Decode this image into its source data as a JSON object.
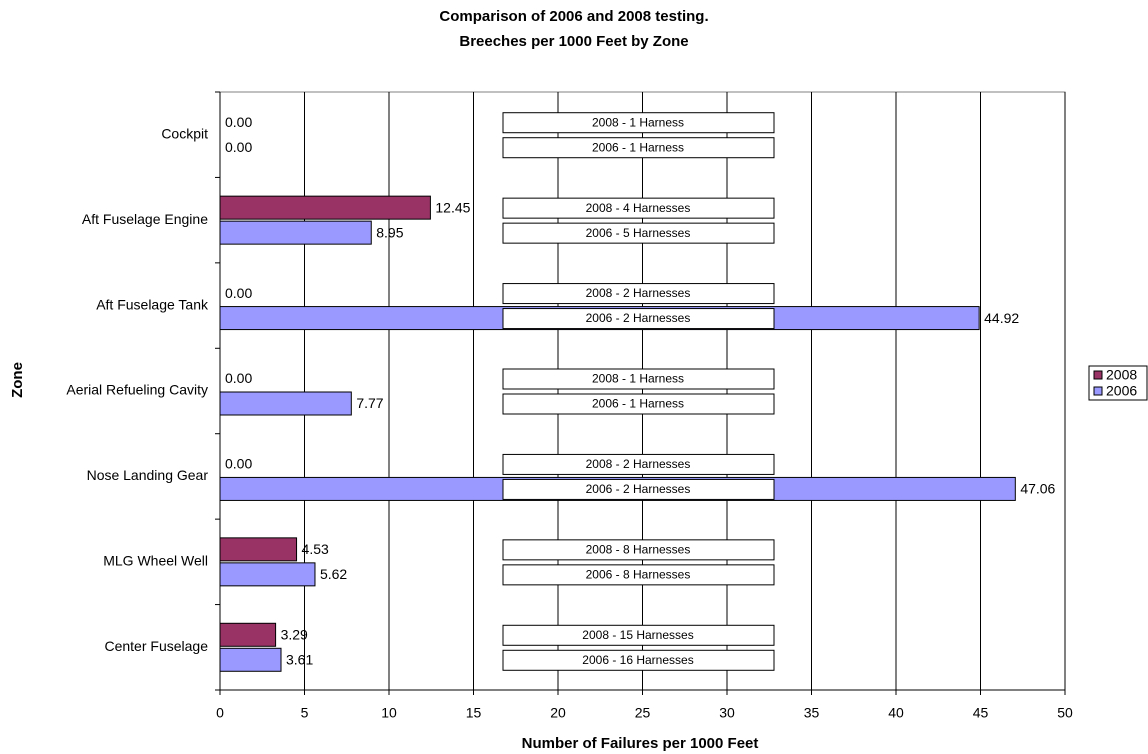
{
  "chart_data": {
    "type": "hbar",
    "title": "Comparison of 2006 and 2008 testing.",
    "subtitle": "Breeches per 1000 Feet by Zone",
    "x_label": "Number of Failures per 1000 Feet",
    "y_label": "Zone",
    "categories": [
      "Cockpit",
      "Aft Fuselage Engine",
      "Aft Fuselage Tank",
      "Aerial Refueling Cavity",
      "Nose Landing Gear",
      "MLG Wheel Well",
      "Center Fuselage"
    ],
    "series": [
      {
        "name": "2008",
        "color": "#993366",
        "values": [
          0,
          12.45,
          0,
          0,
          0,
          4.53,
          3.29
        ],
        "value_labels": [
          "0.00",
          "12.45",
          "0.00",
          "0.00",
          "0.00",
          "4.53",
          "3.29"
        ],
        "notes": [
          "2008 - 1 Harness",
          "2008 - 4 Harnesses",
          "2008 - 2 Harnesses",
          "2008 - 1 Harness",
          "2008 - 2 Harnesses",
          "2008 - 8 Harnesses",
          "2008 - 15 Harnesses"
        ]
      },
      {
        "name": "2006",
        "color": "#9999ff",
        "values": [
          0,
          8.95,
          44.92,
          7.77,
          47.06,
          5.62,
          3.61
        ],
        "value_labels": [
          "0.00",
          "8.95",
          "44.92",
          "7.77",
          "47.06",
          "5.62",
          "3.61"
        ],
        "notes": [
          "2006 - 1 Harness",
          "2006 - 5 Harnesses",
          "2006 - 2 Harnesses",
          "2006 - 1 Harness",
          "2006 - 2 Harnesses",
          "2006 - 8 Harnesses",
          "2006 - 16 Harnesses"
        ]
      }
    ],
    "xlim": [
      0,
      50
    ],
    "xticks": [
      0,
      5,
      10,
      15,
      20,
      25,
      30,
      35,
      40,
      45,
      50
    ],
    "grid": true,
    "legend": "right"
  }
}
